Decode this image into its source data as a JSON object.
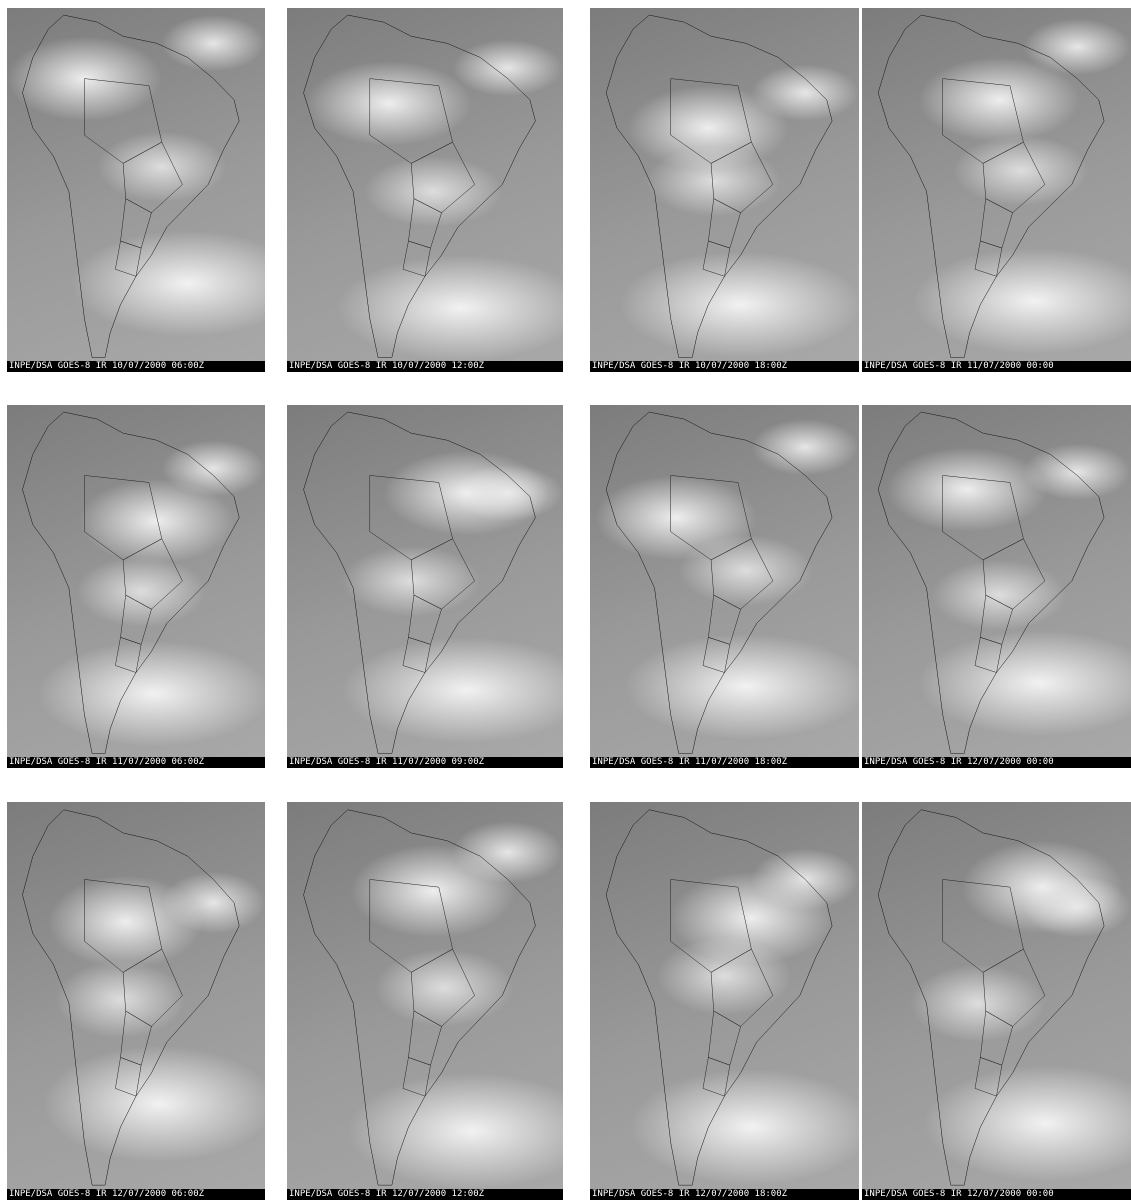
{
  "panels": [
    {
      "caption": "INPE/DSA GOES-8 IR 10/07/2000 06:00Z"
    },
    {
      "caption": "INPE/DSA GOES-8 IR 10/07/2000 12:00Z"
    },
    {
      "caption": "INPE/DSA GOES-8 IR 10/07/2000 18:00Z"
    },
    {
      "caption": "INPE/DSA GOES-8 IR 11/07/2000 00:00"
    },
    {
      "caption": "INPE/DSA GOES-8 IR 11/07/2000 06:00Z"
    },
    {
      "caption": "INPE/DSA GOES-8 IR 11/07/2000 09:00Z"
    },
    {
      "caption": "INPE/DSA GOES-8 IR 11/07/2000 18:00Z"
    },
    {
      "caption": "INPE/DSA GOES-8 IR 12/07/2000 00:00"
    },
    {
      "caption": "INPE/DSA GOES-8 IR 12/07/2000 06:00Z"
    },
    {
      "caption": "INPE/DSA GOES-8 IR 12/07/2000 12:00Z"
    },
    {
      "caption": "INPE/DSA GOES-8 IR 12/07/2000 18:00Z"
    },
    {
      "caption": "INPE/DSA GOES-8 IR 12/07/2000 00:00"
    }
  ]
}
